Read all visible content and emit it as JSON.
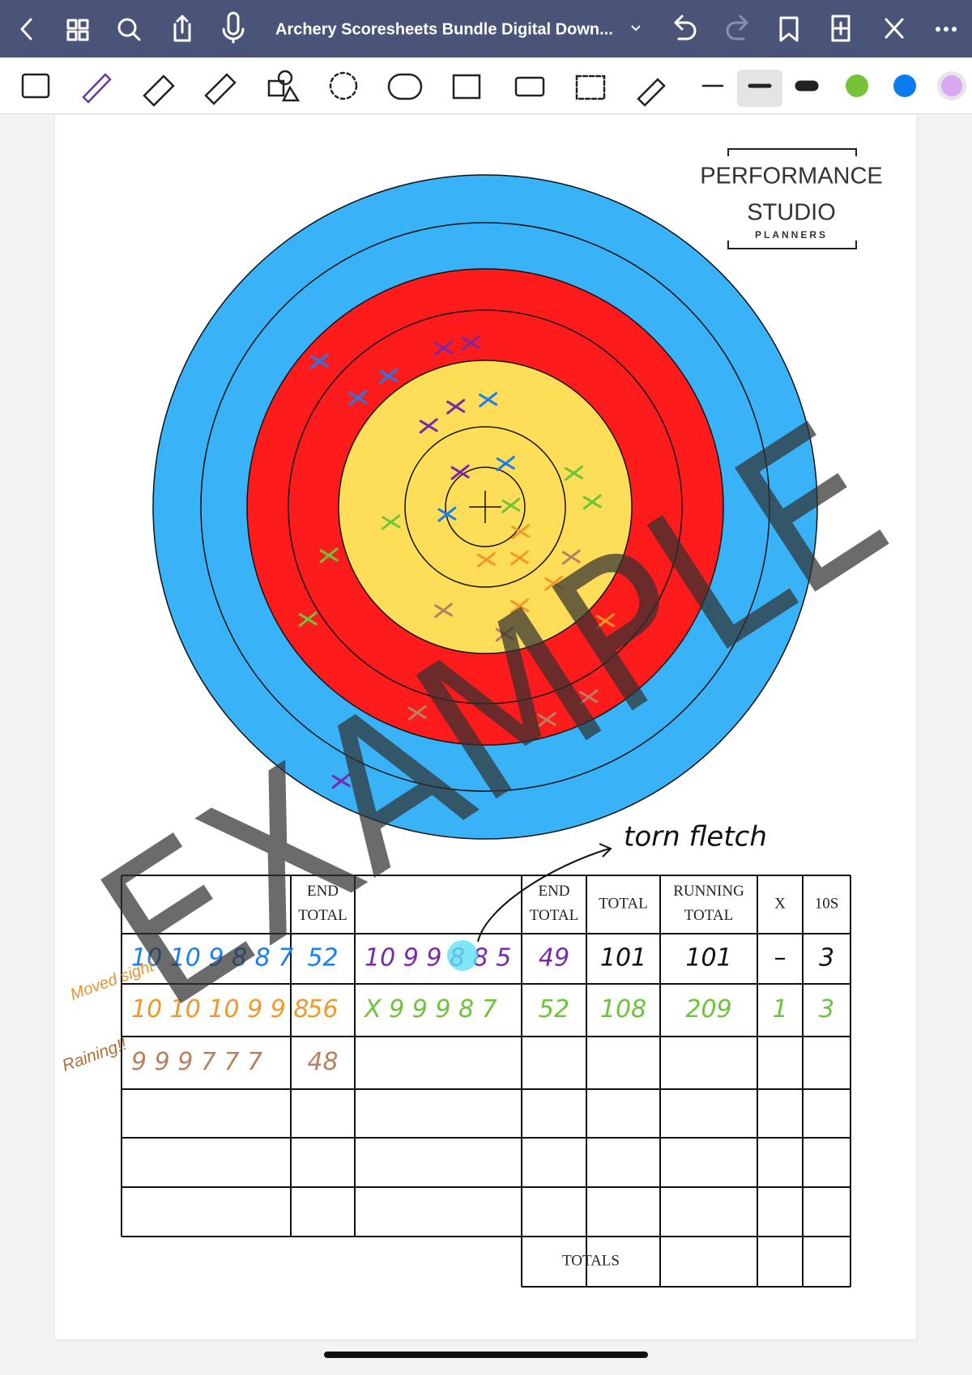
{
  "toolbar": {
    "title": "Archery Scoresheets Bundle Digital Down..."
  },
  "logo": {
    "line1": "PERFORMANCE",
    "line2": "STUDIO",
    "line3": "PLANNERS"
  },
  "watermark": "EXAMPLE",
  "annotations": {
    "torn_fletch": "torn fletch",
    "moved_sight": "Moved sight",
    "raining": "Raining!!"
  },
  "table": {
    "headers": [
      "END TOTAL",
      "END TOTAL",
      "TOTAL",
      "RUNNING TOTAL",
      "X",
      "10S"
    ],
    "rows": [
      [
        "10 10 9 8 8 7",
        "52",
        "10 9 9 8 8 5",
        "49",
        "101",
        "101",
        "–",
        "3"
      ],
      [
        "10 10 10 9 9 8",
        "56",
        "X 9 9 9 8 7",
        "52",
        "108",
        "209",
        "1",
        "3"
      ],
      [
        "9 9 9 7 7 7",
        "48"
      ]
    ],
    "totals_label": "TOTALS"
  }
}
